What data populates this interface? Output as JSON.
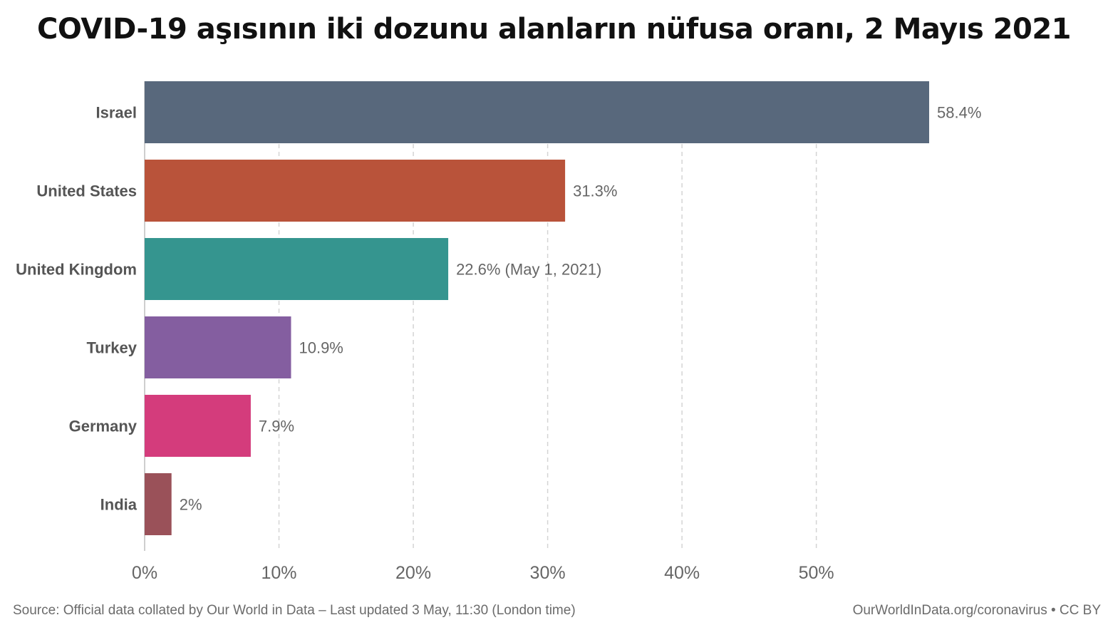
{
  "chart_data": {
    "type": "bar",
    "orientation": "horizontal",
    "title": "COVID-19 aşısının iki dozunu alanların nüfusa oranı, 2 Mayıs 2021",
    "categories": [
      "Israel",
      "United States",
      "United Kingdom",
      "Turkey",
      "Germany",
      "India"
    ],
    "values": [
      58.4,
      31.3,
      22.6,
      10.9,
      7.9,
      2
    ],
    "data_labels": [
      "58.4%",
      "31.3%",
      "22.6% (May 1, 2021)",
      "10.9%",
      "7.9%",
      "2%"
    ],
    "colors": [
      "#58687c",
      "#b9533a",
      "#35958f",
      "#845ea0",
      "#d43c7c",
      "#9a5159"
    ],
    "xlim": [
      0,
      58.4
    ],
    "x_ticks": [
      0,
      10,
      20,
      30,
      40,
      50
    ],
    "x_tick_labels": [
      "0%",
      "10%",
      "20%",
      "30%",
      "40%",
      "50%"
    ],
    "grid": "vertical dashed",
    "xlabel": "",
    "ylabel": ""
  },
  "footer": {
    "source": "Source: Official data collated by Our World in Data – Last updated 3 May, 11:30 (London time)",
    "credit": "OurWorldInData.org/coronavirus • CC BY"
  }
}
